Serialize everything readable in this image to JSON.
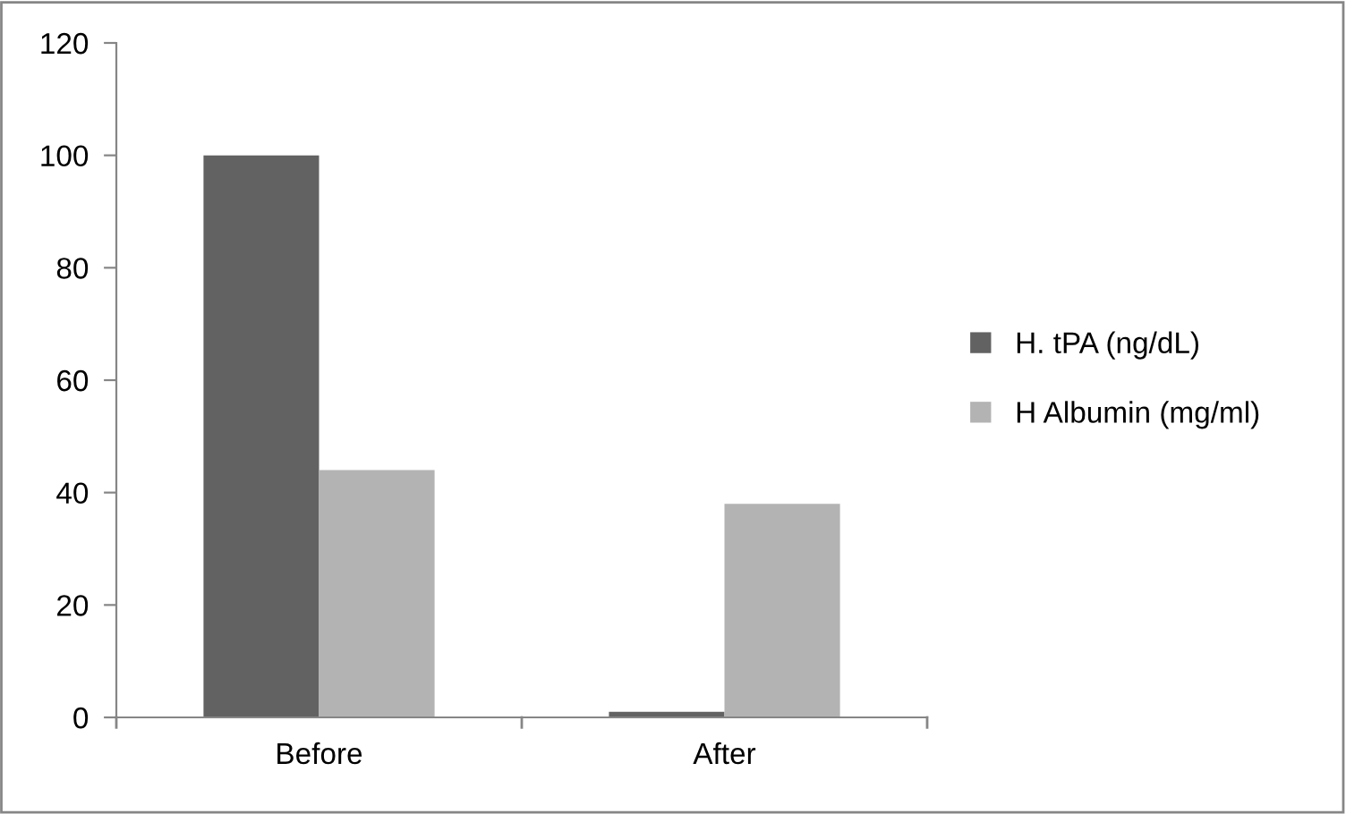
{
  "chart_data": {
    "type": "bar",
    "categories": [
      "Before",
      "After"
    ],
    "series": [
      {
        "name": "H. tPA (ng/dL)",
        "color": "#626262",
        "values": [
          100,
          1
        ]
      },
      {
        "name": "H Albumin (mg/ml)",
        "color": "#b3b3b3",
        "values": [
          44,
          38
        ]
      }
    ],
    "ylim": [
      0,
      120
    ],
    "yticks": [
      0,
      20,
      40,
      60,
      80,
      100,
      120
    ],
    "grid": false,
    "legend": "right"
  }
}
